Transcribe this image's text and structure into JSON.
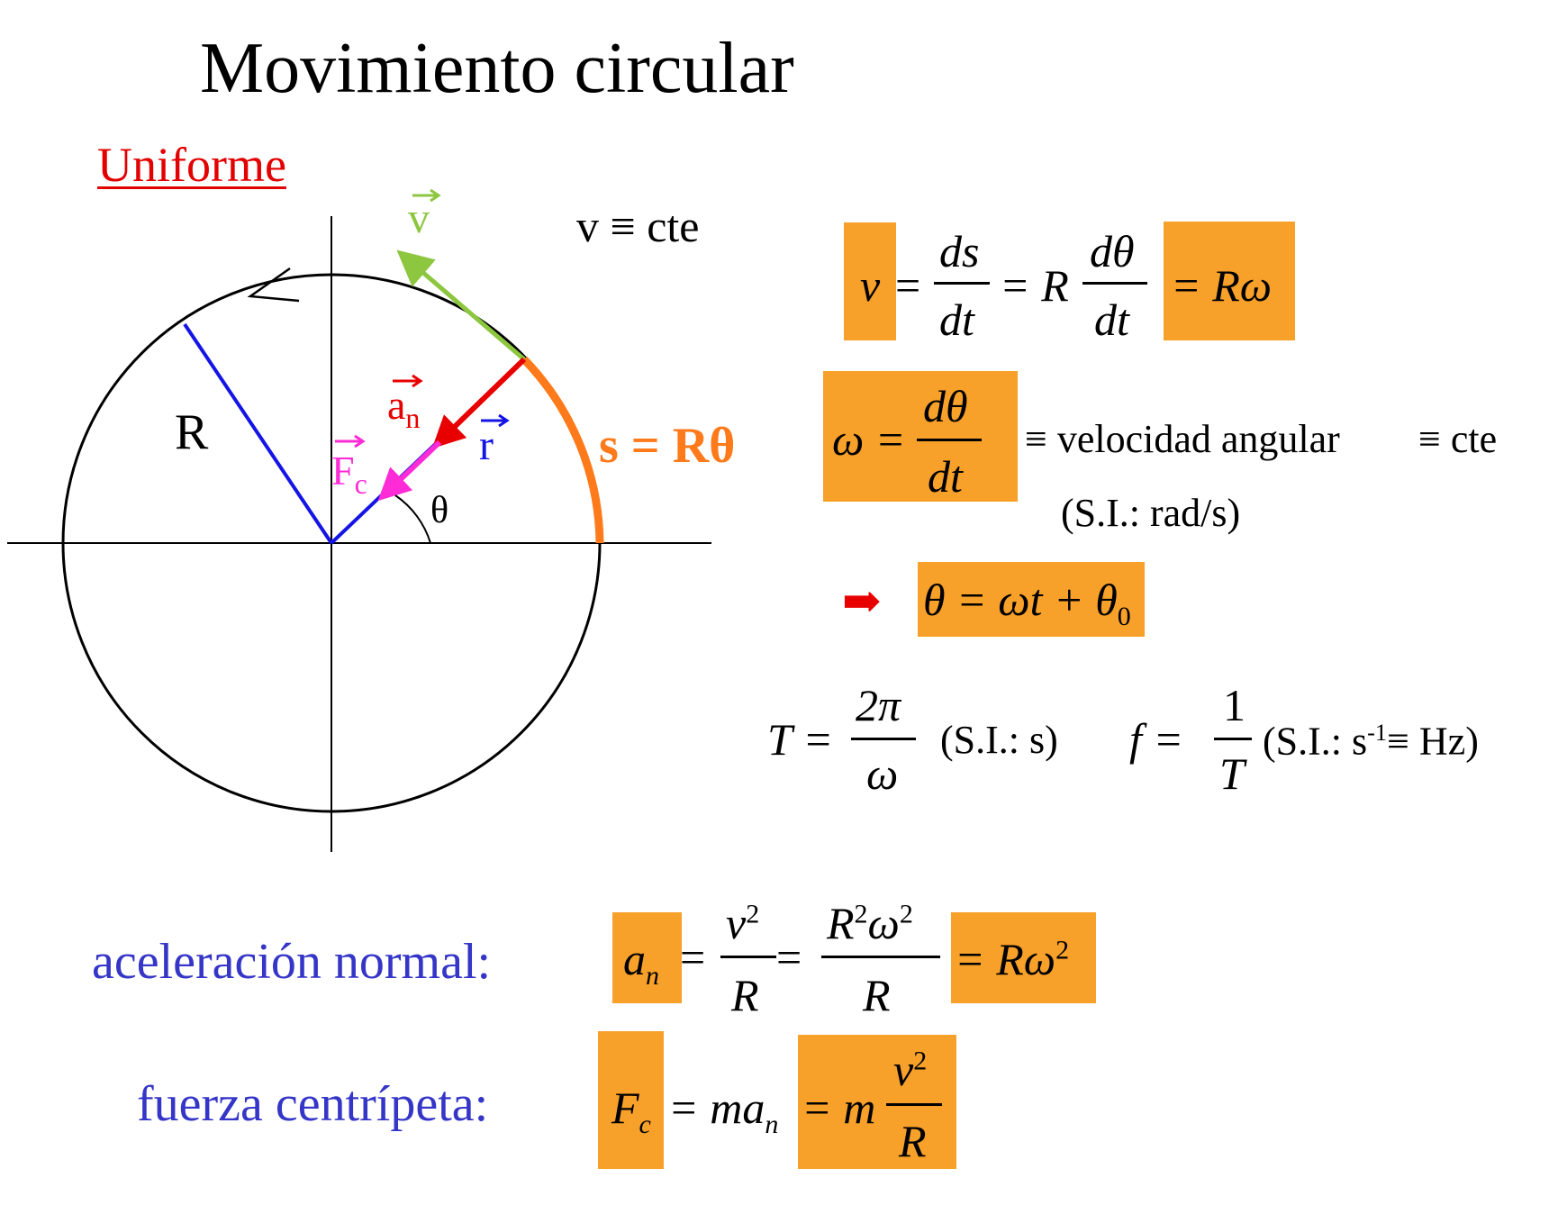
{
  "title": "Movimiento circular",
  "subtitle": "Uniforme",
  "colors": {
    "highlight": "#f7a02a",
    "radius": "#1414e6",
    "velocity": "#8dc63f",
    "accel": "#e80000",
    "force": "#ff2bd6",
    "arc": "#ff7a1a",
    "label_blue": "#3535c8"
  },
  "diagram": {
    "label_R": "R",
    "label_v": "v",
    "label_an": "a",
    "label_an_sub": "n",
    "label_r": "r",
    "label_Fc": "F",
    "label_Fc_sub": "c",
    "label_theta": "θ",
    "label_s": "s = Rθ"
  },
  "v_const": "v ≡ cte",
  "eq_v": {
    "lhs": "v",
    "eq1": "=",
    "num1": "ds",
    "den1": "dt",
    "eq2": "= R",
    "num2": "dθ",
    "den2": "dt",
    "rhs": "= Rω"
  },
  "eq_omega": {
    "lhs": "ω =",
    "num": "dθ",
    "den": "dt",
    "desc": "≡ velocidad angular",
    "const": "≡ cte",
    "units": "(S.I.: rad/s)"
  },
  "eq_theta": {
    "arrow": "➡",
    "text": "θ = ωt + θ",
    "sub": "0"
  },
  "eq_T": {
    "lhs": "T =",
    "num": "2π",
    "den": "ω",
    "units": "(S.I.: s)"
  },
  "eq_f": {
    "lhs": "f =",
    "num": "1",
    "den": "T",
    "units_pre": "(S.I.: s",
    "units_sup": "-1",
    "units_post": "≡ Hz)"
  },
  "accel": {
    "label": "aceleración normal:",
    "lhs": "a",
    "lhs_sub": "n",
    "eq": "=",
    "num1": "v",
    "num1_sup": "2",
    "den1": "R",
    "eq2": "=",
    "num2": "R",
    "num2_sup": "2",
    "num2b": "ω",
    "num2b_sup": "2",
    "den2": "R",
    "rhs": "= Rω",
    "rhs_sup": "2"
  },
  "force": {
    "label": "fuerza centrípeta:",
    "lhs": "F",
    "lhs_sub": "c",
    "mid": "= ma",
    "mid_sub": "n",
    "rhs": "= m",
    "num": "v",
    "num_sup": "2",
    "den": "R"
  }
}
